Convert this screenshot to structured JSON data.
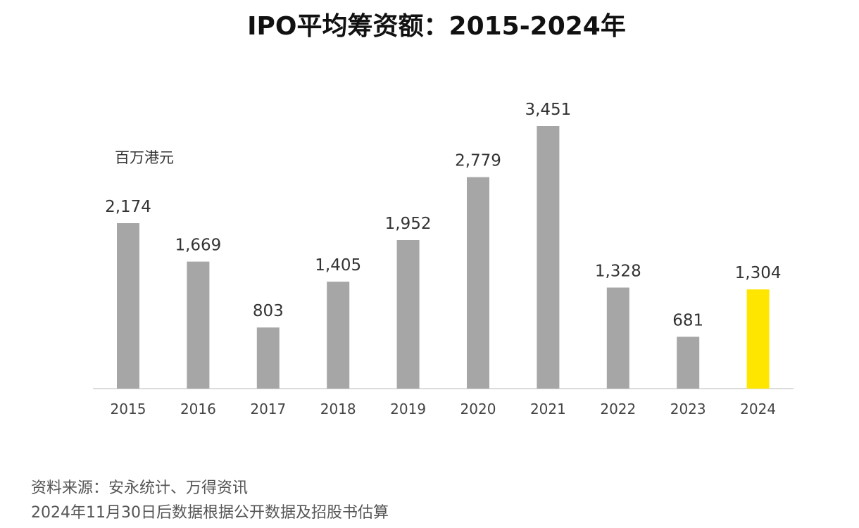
{
  "chart_data": {
    "type": "bar",
    "title": "IPO平均筹资额：2015-2024年",
    "unit_label": "百万港元",
    "categories": [
      "2015",
      "2016",
      "2017",
      "2018",
      "2019",
      "2020",
      "2021",
      "2022",
      "2023",
      "2024"
    ],
    "values": [
      2174,
      1669,
      803,
      1405,
      1952,
      2779,
      3451,
      1328,
      681,
      1304
    ],
    "data_labels": [
      "2,174",
      "1,669",
      "803",
      "1,405",
      "1,952",
      "2,779",
      "3,451",
      "1,328",
      "681",
      "1,304"
    ],
    "ylim": [
      0,
      3451
    ],
    "grid": false,
    "bar_color": "#a6a6a6",
    "highlight_color": "#ffe600",
    "highlight_category": "2024"
  },
  "notes": {
    "source_line": "资料来源：安永统计、万得资讯",
    "estimate_line": "2024年11月30日后数据根据公开数据及招股书估算"
  }
}
